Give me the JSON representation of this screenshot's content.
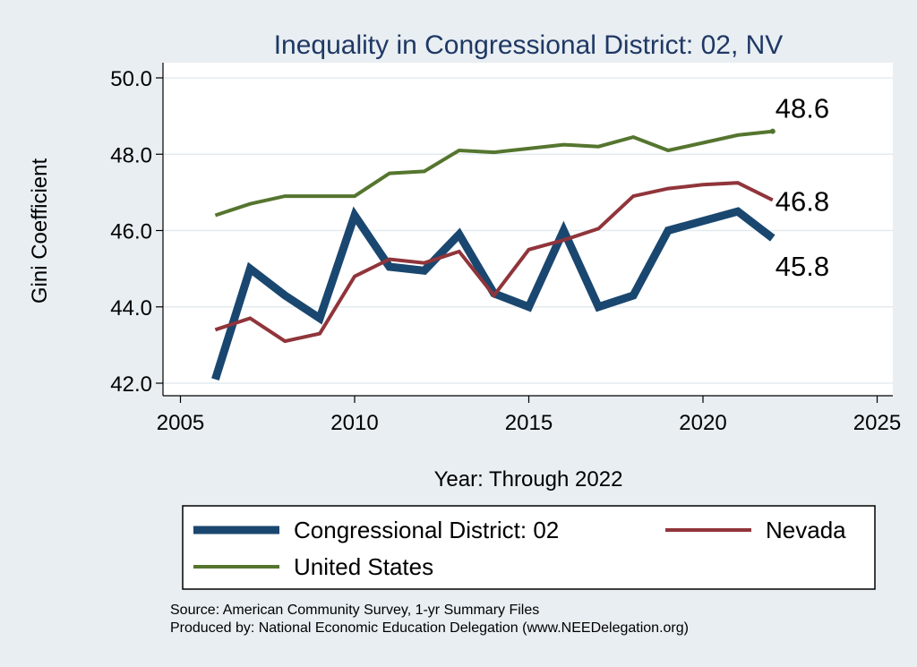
{
  "chart_data": {
    "type": "line",
    "title": "Inequality in Congressional District:  02, NV",
    "xlabel": "Year: Through 2022",
    "ylabel": "Gini Coefficient",
    "xlim": [
      2005,
      2025
    ],
    "ylim": [
      42.0,
      50.0
    ],
    "x_ticks": [
      "2005",
      "2010",
      "2015",
      "2020",
      "2025"
    ],
    "y_ticks": [
      "42.0",
      "44.0",
      "46.0",
      "48.0",
      "50.0"
    ],
    "grid": true,
    "legend_position": "bottom",
    "x": [
      2006,
      2007,
      2008,
      2009,
      2010,
      2011,
      2012,
      2013,
      2014,
      2015,
      2016,
      2017,
      2018,
      2019,
      2020,
      2021,
      2022
    ],
    "series": [
      {
        "name": "Congressional District:  02",
        "color": "#1a476f",
        "values": [
          42.1,
          45.0,
          44.3,
          43.7,
          46.4,
          45.05,
          44.95,
          45.9,
          44.35,
          44.0,
          46.0,
          44.0,
          44.3,
          46.0,
          46.25,
          46.5,
          45.8
        ],
        "end_label": "45.8"
      },
      {
        "name": "Nevada",
        "color": "#90353b",
        "values": [
          43.4,
          43.7,
          43.1,
          43.3,
          44.8,
          45.25,
          45.15,
          45.45,
          44.3,
          45.5,
          45.75,
          46.05,
          46.9,
          47.1,
          47.2,
          47.25,
          46.8
        ],
        "end_label": "46.8"
      },
      {
        "name": "United States",
        "color": "#55752f",
        "values": [
          46.4,
          46.7,
          46.9,
          46.9,
          46.9,
          47.5,
          47.55,
          48.1,
          48.05,
          48.15,
          48.25,
          48.2,
          48.45,
          48.1,
          48.3,
          48.5,
          48.6
        ],
        "end_label": "48.6"
      }
    ],
    "notes": [
      "Source: American Community Survey, 1-yr Summary Files",
      "Produced by: National Economic Education Delegation (www.NEEDelegation.org)"
    ]
  }
}
